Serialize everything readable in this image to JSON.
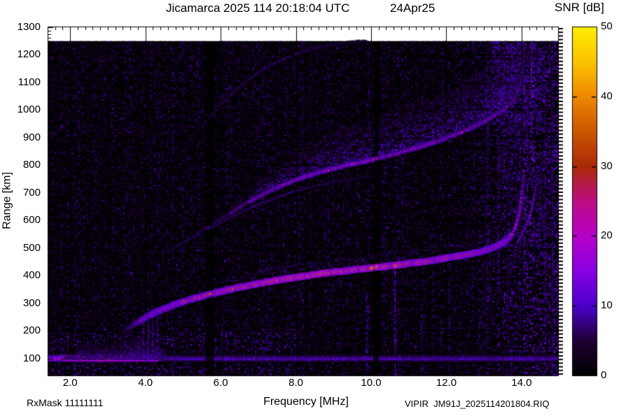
{
  "title": {
    "main": "Jicamarca 2025 114 20:18:04 UTC",
    "date": "24Apr25"
  },
  "colorbar": {
    "title": "SNR [dB]",
    "tick_labels": [
      "0",
      "10",
      "20",
      "30",
      "40",
      "50"
    ],
    "tick_values": [
      0,
      10,
      20,
      30,
      40,
      50
    ],
    "min": 0,
    "max": 50
  },
  "axes": {
    "y_title": "Range [km]",
    "x_title": "Frequency [MHz]",
    "x_tick_labels": [
      "2.0",
      "4.0",
      "6.0",
      "8.0",
      "10.0",
      "12.0",
      "14.0"
    ],
    "x_tick_values": [
      2,
      4,
      6,
      8,
      10,
      12,
      14
    ],
    "y_tick_labels": [
      "100",
      "200",
      "300",
      "400",
      "500",
      "600",
      "700",
      "800",
      "900",
      "1000",
      "1100",
      "1200",
      "1300"
    ],
    "y_tick_values": [
      100,
      200,
      300,
      400,
      500,
      600,
      700,
      800,
      900,
      1000,
      1100,
      1200,
      1300
    ]
  },
  "footer": {
    "rx_mask": "RxMask 11111111",
    "file_ref": "VIPIR  JM91J_2025114201804.RIQ"
  },
  "chart_data": {
    "type": "heatmap",
    "title": "Jicamarca 2025 114 20:18:04 UTC 24Apr25",
    "xlabel": "Frequency [MHz]",
    "ylabel": "Range [km]",
    "zlabel": "SNR [dB]",
    "x_range": [
      1.4,
      14.97
    ],
    "y_range": [
      39,
      1302
    ],
    "z_range": [
      0,
      50
    ],
    "data_top_km": 1250,
    "grid": true,
    "grid_color": "rgba(150,150,150,0.55)",
    "palette_stops": [
      [
        0,
        "#000000"
      ],
      [
        5,
        "#1d0033"
      ],
      [
        10,
        "#4c00cc"
      ],
      [
        15,
        "#8800e0"
      ],
      [
        20,
        "#b600c8"
      ],
      [
        25,
        "#bc0d84"
      ],
      [
        30,
        "#aa2a08"
      ],
      [
        35,
        "#cc5500"
      ],
      [
        40,
        "#ee8800"
      ],
      [
        45,
        "#fbc300"
      ],
      [
        50,
        "#ffee00"
      ]
    ],
    "noise_seed": 20250424,
    "dark_gaps": [
      [
        5.6,
        5.8
      ],
      [
        10.05,
        10.2
      ]
    ],
    "traces": [
      {
        "name": "F-region O-mode 1st hop",
        "style": {
          "halo": 5,
          "mid": 2.6,
          "core": 1.3,
          "skip": 0.05
        },
        "points": [
          [
            3.38,
            192,
            5
          ],
          [
            3.5,
            205,
            9
          ],
          [
            3.62,
            216,
            14
          ],
          [
            3.75,
            228,
            20
          ],
          [
            3.9,
            240,
            26
          ],
          [
            4.05,
            252,
            30
          ],
          [
            4.25,
            266,
            33
          ],
          [
            4.5,
            281,
            35
          ],
          [
            4.75,
            294,
            37
          ],
          [
            5.0,
            306,
            39
          ],
          [
            5.3,
            318,
            41
          ],
          [
            5.6,
            329,
            42
          ],
          [
            5.9,
            339,
            43
          ],
          [
            6.2,
            349,
            44
          ],
          [
            6.5,
            358,
            45
          ],
          [
            6.8,
            366,
            46
          ],
          [
            7.1,
            374,
            47
          ],
          [
            7.4,
            381,
            48
          ],
          [
            7.7,
            388,
            49
          ],
          [
            8.0,
            394,
            50
          ],
          [
            8.3,
            400,
            50
          ],
          [
            8.6,
            406,
            50
          ],
          [
            9.0,
            413,
            50
          ],
          [
            9.4,
            419,
            50
          ],
          [
            9.8,
            425,
            50
          ],
          [
            10.2,
            431,
            50
          ],
          [
            10.6,
            437,
            49
          ],
          [
            11.0,
            444,
            48
          ],
          [
            11.4,
            451,
            47
          ],
          [
            11.8,
            459,
            46
          ],
          [
            12.1,
            466,
            45
          ],
          [
            12.4,
            473,
            44
          ],
          [
            12.7,
            481,
            42
          ],
          [
            12.95,
            489,
            41
          ],
          [
            13.15,
            497,
            39
          ],
          [
            13.32,
            506,
            37
          ],
          [
            13.45,
            515,
            35
          ],
          [
            13.57,
            526,
            33
          ],
          [
            13.67,
            538,
            31
          ],
          [
            13.75,
            552,
            29
          ]
        ]
      },
      {
        "name": "O-mode critical asymptote",
        "style": {
          "halo": 3.5,
          "mid": 2,
          "core": 1.1,
          "skip": 0.35
        },
        "points": [
          [
            13.75,
            552,
            28
          ],
          [
            13.82,
            572,
            26
          ],
          [
            13.88,
            596,
            25
          ],
          [
            13.93,
            624,
            23
          ],
          [
            13.97,
            655,
            22
          ],
          [
            14.0,
            690,
            20
          ],
          [
            14.03,
            724,
            18
          ],
          [
            14.05,
            756,
            15
          ],
          [
            14.06,
            782,
            11
          ]
        ]
      },
      {
        "name": "X-mode asymptote curl",
        "style": {
          "halo": 3,
          "mid": 1.8,
          "core": 1,
          "skip": 0.42
        },
        "points": [
          [
            13.88,
            518,
            13
          ],
          [
            13.97,
            540,
            15
          ],
          [
            14.07,
            565,
            17
          ],
          [
            14.16,
            594,
            18
          ],
          [
            14.24,
            628,
            18
          ],
          [
            14.3,
            664,
            16
          ],
          [
            14.35,
            700,
            14
          ],
          [
            14.39,
            736,
            11
          ],
          [
            14.41,
            768,
            8
          ]
        ]
      },
      {
        "name": "faint multiple echo",
        "style": {
          "halo": 2.6,
          "mid": 1.5,
          "core": 0.9,
          "skip": 0.3
        },
        "points": [
          [
            4.5,
            482,
            6
          ],
          [
            4.8,
            505,
            7
          ],
          [
            5.1,
            528,
            8
          ],
          [
            5.4,
            550,
            9
          ],
          [
            5.7,
            572,
            9
          ],
          [
            6.0,
            594,
            10
          ],
          [
            6.3,
            615,
            10
          ],
          [
            6.6,
            634,
            10
          ],
          [
            6.9,
            652,
            10
          ],
          [
            7.2,
            669,
            10
          ],
          [
            7.5,
            684,
            10
          ],
          [
            7.8,
            698,
            9
          ],
          [
            8.1,
            710,
            9
          ],
          [
            8.4,
            721,
            8
          ],
          [
            8.7,
            731,
            8
          ],
          [
            9.0,
            739,
            7
          ],
          [
            9.3,
            746,
            7
          ],
          [
            9.6,
            752,
            6
          ],
          [
            9.9,
            757,
            6
          ],
          [
            10.2,
            761,
            5
          ]
        ]
      },
      {
        "name": "2nd hop echo (red lower edge)",
        "style": {
          "halo": 3.6,
          "mid": 2,
          "core": 1.1,
          "skip": 0.12
        },
        "points": [
          [
            5.45,
            560,
            8
          ],
          [
            5.7,
            580,
            9
          ],
          [
            5.95,
            601,
            10
          ],
          [
            6.2,
            622,
            12
          ],
          [
            6.45,
            643,
            15
          ],
          [
            6.7,
            663,
            18
          ],
          [
            6.95,
            682,
            21
          ],
          [
            7.2,
            700,
            23
          ],
          [
            7.45,
            716,
            25
          ],
          [
            7.7,
            731,
            26
          ],
          [
            8.0,
            747,
            27
          ],
          [
            8.3,
            761,
            28
          ],
          [
            8.6,
            773,
            28
          ],
          [
            9.0,
            788,
            28
          ],
          [
            9.4,
            801,
            28
          ],
          [
            9.8,
            813,
            28
          ],
          [
            10.2,
            826,
            27
          ],
          [
            10.6,
            839,
            27
          ],
          [
            11.0,
            854,
            26
          ],
          [
            11.4,
            870,
            26
          ],
          [
            11.8,
            888,
            25
          ],
          [
            12.2,
            908,
            25
          ],
          [
            12.6,
            931,
            24
          ],
          [
            13.0,
            957,
            23
          ],
          [
            13.3,
            980,
            22
          ],
          [
            13.55,
            1003,
            21
          ],
          [
            13.75,
            1030,
            19
          ],
          [
            13.88,
            1060,
            17
          ],
          [
            13.96,
            1095,
            15
          ],
          [
            14.02,
            1135,
            13
          ],
          [
            14.06,
            1180,
            11
          ],
          [
            14.09,
            1228,
            9
          ]
        ]
      },
      {
        "name": "3rd hop echo",
        "style": {
          "halo": 2.6,
          "mid": 1.5,
          "core": 0.9,
          "skip": 0.35
        },
        "points": [
          [
            5.45,
            935,
            5
          ],
          [
            5.7,
            975,
            6
          ],
          [
            6.0,
            1020,
            7
          ],
          [
            6.3,
            1060,
            8
          ],
          [
            6.6,
            1095,
            8
          ],
          [
            6.9,
            1126,
            9
          ],
          [
            7.2,
            1152,
            9
          ],
          [
            7.5,
            1174,
            9
          ],
          [
            7.8,
            1192,
            9
          ],
          [
            8.1,
            1207,
            8
          ],
          [
            8.4,
            1219,
            8
          ],
          [
            8.7,
            1229,
            8
          ],
          [
            9.0,
            1237,
            7
          ],
          [
            9.3,
            1243,
            7
          ],
          [
            9.6,
            1247,
            6
          ],
          [
            9.9,
            1249,
            6
          ]
        ]
      }
    ],
    "e_region": {
      "center_km": 100,
      "strong_band_mhz": [
        1.6,
        4.35
      ],
      "peak_snr": 30,
      "weak_snr": 10,
      "fuzz_mhz": [
        1.75,
        4.65
      ],
      "fuzz_top_km": 185,
      "spike_freqs_mhz": [
        3.8,
        3.94,
        4.07,
        4.19,
        4.31
      ]
    },
    "diffuse": {
      "above_second_hop": {
        "f": [
          6.3,
          7,
          8,
          9,
          10,
          11,
          12,
          13,
          13.6,
          14.1
        ],
        "thickness_km": [
          25,
          55,
          85,
          125,
          150,
          160,
          170,
          190,
          215,
          140
        ]
      },
      "blobs": [
        {
          "f": [
            13.2,
            14.55
          ],
          "r": [
            950,
            1250
          ],
          "n": 900,
          "v": [
            4,
            11
          ]
        },
        {
          "f": [
            13.4,
            14.3
          ],
          "r": [
            720,
            980
          ],
          "n": 320,
          "v": [
            4,
            9
          ]
        },
        {
          "f": [
            13.5,
            14.6
          ],
          "r": [
            430,
            700
          ],
          "n": 220,
          "v": [
            4,
            8
          ]
        }
      ]
    },
    "rfi_columns": [
      {
        "f": 2.62,
        "r0": 40,
        "r1": 150,
        "v": 7
      },
      {
        "f": 3.08,
        "r0": 40,
        "r1": 130,
        "v": 6
      },
      {
        "f": 4.16,
        "r0": 40,
        "r1": 210,
        "v": 7
      },
      {
        "f": 9.86,
        "r0": 40,
        "r1": 340,
        "v": 9
      },
      {
        "f": 10.62,
        "r0": 40,
        "r1": 450,
        "v": 12
      },
      {
        "f": 11.32,
        "r0": 40,
        "r1": 300,
        "v": 7
      },
      {
        "f": 12.08,
        "r0": 40,
        "r1": 480,
        "v": 6
      },
      {
        "f": 13.05,
        "r0": 40,
        "r1": 1250,
        "v": 6
      },
      {
        "f": 13.36,
        "r0": 300,
        "r1": 900,
        "v": 7
      },
      {
        "f": 13.62,
        "r0": 40,
        "r1": 700,
        "v": 6
      },
      {
        "f": 14.05,
        "r0": 1050,
        "r1": 1250,
        "v": 13
      },
      {
        "f": 14.25,
        "r0": 1040,
        "r1": 1240,
        "v": 15
      },
      {
        "f": 14.45,
        "r0": 500,
        "r1": 800,
        "v": 8
      },
      {
        "f": 14.62,
        "r0": 200,
        "r1": 1100,
        "v": 7
      },
      {
        "f": 14.8,
        "r0": 40,
        "r1": 1250,
        "v": 8
      }
    ]
  }
}
